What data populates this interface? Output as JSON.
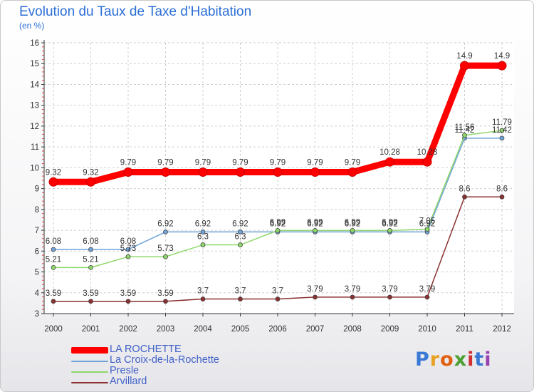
{
  "title": "Evolution du Taux de Taxe d'Habitation",
  "unit_label": "(en %)",
  "brand": {
    "name": "Proxiti",
    "letters": [
      "P",
      "r",
      "o",
      "x",
      "i",
      "t",
      "i"
    ]
  },
  "chart_data": {
    "type": "line",
    "title": "Evolution du Taux de Taxe d'Habitation",
    "ylabel": "(en %)",
    "xlabel": "",
    "ylim": [
      3,
      16
    ],
    "y_ticks": [
      3,
      4,
      5,
      6,
      7,
      8,
      9,
      10,
      11,
      12,
      13,
      14,
      15,
      16
    ],
    "grid": true,
    "legend_position": "bottom-left",
    "categories": [
      "2000",
      "2001",
      "2002",
      "2003",
      "2004",
      "2005",
      "2006",
      "2007",
      "2008",
      "2009",
      "2010",
      "2011",
      "2012"
    ],
    "series": [
      {
        "name": "LA ROCHETTE",
        "color": "#ff0000",
        "values": [
          9.32,
          9.32,
          9.79,
          9.79,
          9.79,
          9.79,
          9.79,
          9.79,
          9.79,
          10.28,
          10.28,
          14.9,
          14.9
        ],
        "labels": [
          "9.32",
          "9.32",
          "9.79",
          "9.79",
          "9.79",
          "9.79",
          "9.79",
          "9.79",
          "9.79",
          "10.28",
          "10.28",
          "14.9",
          "14.9"
        ]
      },
      {
        "name": "La Croix-de-la-Rochette",
        "color": "#6fa3d8",
        "values": [
          6.08,
          6.08,
          6.08,
          6.92,
          6.92,
          6.92,
          6.92,
          6.92,
          6.92,
          6.92,
          6.92,
          11.42,
          11.42
        ],
        "labels": [
          "6.08",
          "6.08",
          "6.08",
          "6.92",
          "6.92",
          "6.92",
          "6.92",
          "6.92",
          "6.92",
          "6.92",
          "6.92",
          "11.42",
          "11.42"
        ]
      },
      {
        "name": "Presle",
        "color": "#8ed86a",
        "values": [
          5.21,
          5.21,
          5.73,
          5.73,
          6.3,
          6.3,
          6.99,
          6.99,
          6.99,
          6.99,
          7.05,
          11.56,
          11.79
        ],
        "labels": [
          "5.21",
          "5.21",
          "5.73",
          "5.73",
          "6.3",
          "6.3",
          "6.99",
          "6.99",
          "6.99",
          "6.99",
          "7.05",
          "11.56",
          "11.79"
        ]
      },
      {
        "name": "Arvillard",
        "color": "#8b3030",
        "values": [
          3.59,
          3.59,
          3.59,
          3.59,
          3.7,
          3.7,
          3.7,
          3.79,
          3.79,
          3.79,
          3.79,
          8.6,
          8.6
        ],
        "labels": [
          "3.59",
          "3.59",
          "3.59",
          "3.59",
          "3.7",
          "3.7",
          "3.7",
          "3.79",
          "3.79",
          "3.79",
          "3.79",
          "8.6",
          "8.6"
        ]
      }
    ]
  }
}
